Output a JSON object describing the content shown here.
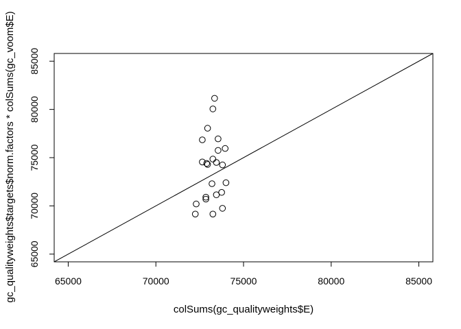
{
  "chart_data": {
    "type": "scatter",
    "title": "",
    "xlabel": "colSums(gc_qualityweights$E)",
    "ylabel": "gc_qualityweights$targets$norm.factors * colSums(gc_voom$E)",
    "xlim": [
      64200,
      85800
    ],
    "ylim": [
      64200,
      85800
    ],
    "x_ticks": [
      65000,
      70000,
      75000,
      80000,
      85000
    ],
    "y_ticks": [
      65000,
      70000,
      75000,
      80000,
      85000
    ],
    "x_tick_labels": [
      "65000",
      "70000",
      "75000",
      "80000",
      "85000"
    ],
    "y_tick_labels": [
      "65000",
      "70000",
      "75000",
      "80000",
      "85000"
    ],
    "reference_line": {
      "intercept": 0,
      "slope": 1
    },
    "grid": false,
    "marker": "open-circle",
    "points": [
      {
        "x": 73350,
        "y": 81150
      },
      {
        "x": 73250,
        "y": 80050
      },
      {
        "x": 72950,
        "y": 78050
      },
      {
        "x": 72650,
        "y": 76850
      },
      {
        "x": 73550,
        "y": 76950
      },
      {
        "x": 73550,
        "y": 75750
      },
      {
        "x": 73950,
        "y": 75950
      },
      {
        "x": 73250,
        "y": 74850
      },
      {
        "x": 72650,
        "y": 74550
      },
      {
        "x": 72900,
        "y": 74400
      },
      {
        "x": 72950,
        "y": 74300
      },
      {
        "x": 73450,
        "y": 74500
      },
      {
        "x": 73800,
        "y": 74250
      },
      {
        "x": 73200,
        "y": 72300
      },
      {
        "x": 74000,
        "y": 72400
      },
      {
        "x": 73750,
        "y": 71400
      },
      {
        "x": 73450,
        "y": 71150
      },
      {
        "x": 72850,
        "y": 70900
      },
      {
        "x": 72850,
        "y": 70700
      },
      {
        "x": 72300,
        "y": 70200
      },
      {
        "x": 73800,
        "y": 69750
      },
      {
        "x": 72250,
        "y": 69150
      },
      {
        "x": 73250,
        "y": 69150
      }
    ]
  }
}
